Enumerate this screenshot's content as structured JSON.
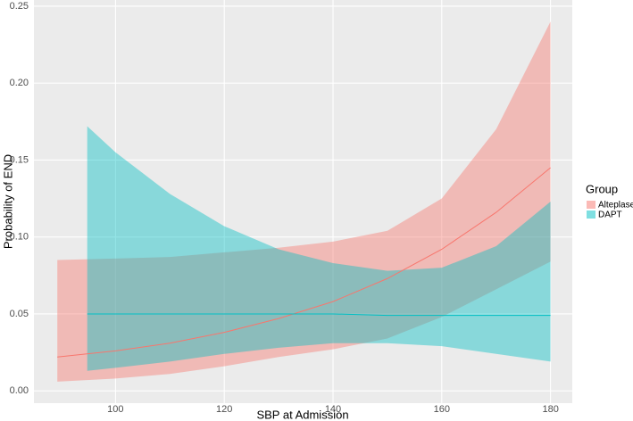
{
  "chart_data": {
    "type": "line",
    "x_label": "SBP at Admission",
    "y_label": "Probability of END",
    "legend_title": "Group",
    "legend": "right",
    "grid": true,
    "xlim": [
      85,
      184
    ],
    "ylim": [
      -0.008,
      0.254
    ],
    "xticks": [
      100,
      120,
      140,
      160,
      180
    ],
    "yticks": [
      {
        "value": 0,
        "label": "0.00"
      },
      {
        "value": 0.05,
        "label": "0.05"
      },
      {
        "value": 0.1,
        "label": "0.10"
      },
      {
        "value": 0.15,
        "label": "0.15"
      },
      {
        "value": 0.2,
        "label": "0.20"
      },
      {
        "value": 0.25,
        "label": "0.25"
      }
    ],
    "series": [
      {
        "name": "Alteplase",
        "color": "#f8766d",
        "x": [
          89.3,
          100,
          110,
          120,
          130,
          140,
          150,
          160,
          170,
          180
        ],
        "values": [
          0.022,
          0.026,
          0.031,
          0.038,
          0.047,
          0.058,
          0.073,
          0.092,
          0.116,
          0.145
        ],
        "lower": [
          0.006,
          0.008,
          0.011,
          0.016,
          0.022,
          0.027,
          0.034,
          0.048,
          0.066,
          0.084
        ],
        "upper": [
          0.085,
          0.086,
          0.087,
          0.09,
          0.093,
          0.097,
          0.104,
          0.125,
          0.17,
          0.24
        ]
      },
      {
        "name": "DAPT",
        "color": "#00bfc4",
        "x": [
          94.8,
          100,
          110,
          120,
          130,
          140,
          150,
          160,
          170,
          180
        ],
        "values": [
          0.05,
          0.05,
          0.05,
          0.05,
          0.05,
          0.05,
          0.049,
          0.049,
          0.049,
          0.049
        ],
        "lower": [
          0.013,
          0.015,
          0.019,
          0.024,
          0.028,
          0.031,
          0.031,
          0.029,
          0.024,
          0.019
        ],
        "upper": [
          0.172,
          0.155,
          0.128,
          0.107,
          0.092,
          0.083,
          0.078,
          0.08,
          0.094,
          0.123
        ]
      }
    ]
  }
}
